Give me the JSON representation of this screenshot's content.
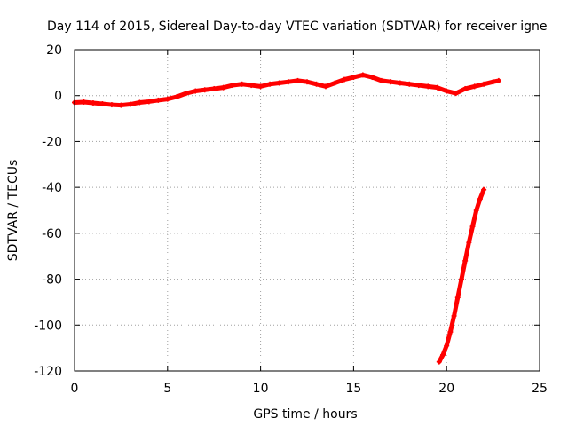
{
  "chart_data": {
    "type": "scatter",
    "title": "Day 114 of 2015, Sidereal Day-to-day VTEC variation (SDTVAR) for receiver igne",
    "xlabel": "GPS time / hours",
    "ylabel": "SDTVAR / TECUs",
    "xlim": [
      0,
      25
    ],
    "ylim": [
      -120,
      20
    ],
    "x_ticks": [
      0,
      5,
      10,
      15,
      20,
      25
    ],
    "y_ticks": [
      -120,
      -100,
      -80,
      -60,
      -40,
      -20,
      0,
      20
    ],
    "x_tick_labels": [
      "0",
      "5",
      "10",
      "15",
      "20",
      "25"
    ],
    "y_tick_labels": [
      "-120",
      "-100",
      "-80",
      "-60",
      "-40",
      "-20",
      "0",
      "20"
    ],
    "grid": true,
    "marker_color": "#ff0000",
    "series": [
      {
        "points": [
          [
            0.0,
            -3.0
          ],
          [
            0.5,
            -2.8
          ],
          [
            1.0,
            -3.2
          ],
          [
            1.5,
            -3.6
          ],
          [
            2.0,
            -4.0
          ],
          [
            2.5,
            -4.2
          ],
          [
            3.0,
            -3.8
          ],
          [
            3.5,
            -3.0
          ],
          [
            4.0,
            -2.6
          ],
          [
            4.5,
            -2.0
          ],
          [
            5.0,
            -1.5
          ],
          [
            5.5,
            -0.5
          ],
          [
            6.0,
            1.0
          ],
          [
            6.5,
            2.0
          ],
          [
            7.0,
            2.5
          ],
          [
            7.5,
            3.0
          ],
          [
            8.0,
            3.5
          ],
          [
            8.5,
            4.5
          ],
          [
            9.0,
            5.0
          ],
          [
            9.5,
            4.5
          ],
          [
            10.0,
            4.0
          ],
          [
            10.5,
            5.0
          ],
          [
            11.0,
            5.5
          ],
          [
            11.5,
            6.0
          ],
          [
            12.0,
            6.5
          ],
          [
            12.5,
            6.0
          ],
          [
            13.0,
            5.0
          ],
          [
            13.5,
            4.0
          ],
          [
            14.0,
            5.5
          ],
          [
            14.5,
            7.0
          ],
          [
            15.0,
            8.0
          ],
          [
            15.5,
            9.0
          ],
          [
            16.0,
            8.0
          ],
          [
            16.5,
            6.5
          ],
          [
            17.0,
            6.0
          ],
          [
            17.5,
            5.5
          ],
          [
            18.0,
            5.0
          ],
          [
            18.5,
            4.5
          ],
          [
            19.0,
            4.0
          ],
          [
            19.5,
            3.5
          ],
          [
            20.0,
            2.0
          ],
          [
            20.5,
            1.0
          ],
          [
            21.0,
            3.0
          ],
          [
            21.5,
            4.0
          ],
          [
            22.0,
            5.0
          ],
          [
            22.5,
            6.0
          ],
          [
            22.8,
            6.5
          ]
        ]
      },
      {
        "points": [
          [
            19.6,
            -116
          ],
          [
            19.8,
            -113
          ],
          [
            20.0,
            -109
          ],
          [
            20.2,
            -103
          ],
          [
            20.4,
            -96
          ],
          [
            20.6,
            -88
          ],
          [
            20.8,
            -80
          ],
          [
            21.0,
            -72
          ],
          [
            21.2,
            -64
          ],
          [
            21.4,
            -57
          ],
          [
            21.6,
            -50
          ],
          [
            21.8,
            -45
          ],
          [
            22.0,
            -41
          ]
        ]
      }
    ]
  }
}
